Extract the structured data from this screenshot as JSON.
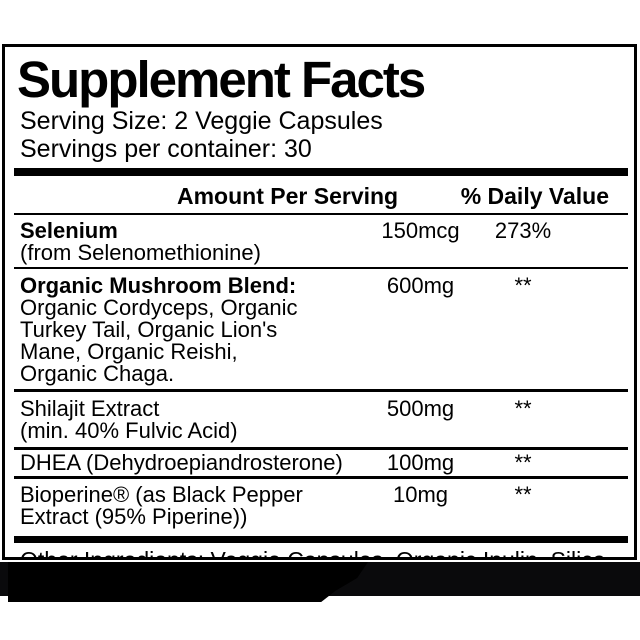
{
  "label": {
    "title": "Supplement Facts",
    "serving_size": "Serving Size: 2 Veggie Capsules",
    "servings_per_container": "Servings per container: 30",
    "headers": {
      "amount": "Amount Per Serving",
      "daily_value": "% Daily Value"
    },
    "rows": [
      {
        "key": "selenium",
        "name": "Selenium",
        "name_bold": true,
        "details": [
          "(from Selenomethionine)"
        ],
        "amount": "150mcg",
        "dv": "273%"
      },
      {
        "key": "mushroom",
        "name": "Organic Mushroom Blend:",
        "name_bold": true,
        "details": [
          "Organic Cordyceps, Organic",
          "Turkey Tail, Organic Lion's",
          "Mane, Organic Reishi,",
          "Organic Chaga."
        ],
        "amount": "600mg",
        "dv": "**"
      },
      {
        "key": "shilajit",
        "name": "Shilajit Extract",
        "name_bold": false,
        "details": [
          "(min. 40% Fulvic Acid)"
        ],
        "amount": "500mg",
        "dv": "**"
      },
      {
        "key": "dhea",
        "name": "DHEA (Dehydroepiandrosterone)",
        "name_bold": false,
        "details": [],
        "amount": "100mg",
        "dv": "**"
      },
      {
        "key": "bioperine",
        "name": "Bioperine® (as Black Pepper",
        "name_bold": false,
        "details": [
          "Extract (95% Piperine))"
        ],
        "amount": "10mg",
        "dv": "**"
      }
    ],
    "other_ingredients": "Other Ingredients: Veggie Capsules, Organic Inulin, Silica."
  },
  "colors": {
    "text": "#000000",
    "panel_background": "#ffffff",
    "border": "#000000",
    "footer_band": "#0a0a0c",
    "footer_blob": "#000000"
  }
}
